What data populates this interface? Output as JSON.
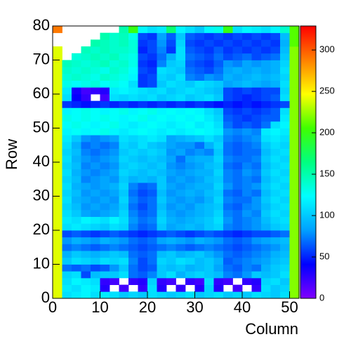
{
  "chart_data": {
    "type": "heatmap",
    "x_label": "Column",
    "y_label": "Row",
    "xlim": [
      0,
      52
    ],
    "ylim": [
      0,
      80
    ],
    "zlim": [
      0,
      329
    ],
    "xticks": [
      0,
      10,
      20,
      30,
      40,
      50
    ],
    "yticks": [
      0,
      10,
      20,
      30,
      40,
      50,
      60,
      70,
      80
    ],
    "zticks": [
      0,
      50,
      100,
      150,
      200,
      250,
      300
    ],
    "palette": [
      "#8000ff",
      "#0000ff",
      "#00a0ff",
      "#00ffff",
      "#00ff80",
      "#40ff00",
      "#ffff00",
      "#ff8000",
      "#ff0000"
    ],
    "xbins": [
      0,
      2,
      4,
      6,
      8,
      10,
      12,
      14,
      16,
      18,
      20,
      22,
      24,
      26,
      28,
      30,
      32,
      34,
      36,
      38,
      40,
      42,
      44,
      46,
      48,
      50,
      52
    ],
    "ybins": [
      0,
      2,
      4,
      6,
      8,
      10,
      12,
      14,
      16,
      18,
      20,
      22,
      24,
      26,
      28,
      30,
      32,
      34,
      36,
      38,
      40,
      42,
      44,
      46,
      48,
      50,
      52,
      54,
      56,
      58,
      60,
      62,
      64,
      66,
      68,
      70,
      72,
      74,
      76,
      78,
      80
    ],
    "z": [
      [
        240,
        110,
        115,
        120,
        110,
        115,
        110,
        100,
        105,
        100,
        110,
        105,
        100,
        105,
        110,
        100,
        105,
        110,
        100,
        105,
        100,
        110,
        105,
        100,
        110,
        220
      ],
      [
        240,
        115,
        110,
        120,
        115,
        30,
        null,
        20,
        null,
        25,
        110,
        30,
        null,
        25,
        null,
        30,
        105,
        30,
        null,
        20,
        null,
        25,
        110,
        100,
        105,
        220
      ],
      [
        240,
        110,
        120,
        115,
        110,
        25,
        20,
        null,
        25,
        30,
        105,
        25,
        20,
        null,
        25,
        20,
        110,
        25,
        20,
        null,
        25,
        30,
        105,
        110,
        100,
        220
      ],
      [
        240,
        105,
        110,
        60,
        95,
        100,
        100,
        110,
        70,
        65,
        75,
        100,
        110,
        90,
        100,
        105,
        100,
        95,
        75,
        70,
        80,
        100,
        95,
        100,
        110,
        220
      ],
      [
        240,
        70,
        65,
        70,
        60,
        65,
        80,
        100,
        70,
        60,
        65,
        100,
        95,
        100,
        90,
        95,
        100,
        85,
        70,
        65,
        75,
        70,
        90,
        100,
        105,
        220
      ],
      [
        240,
        100,
        110,
        105,
        100,
        110,
        105,
        110,
        75,
        60,
        70,
        105,
        100,
        110,
        105,
        95,
        100,
        90,
        65,
        70,
        75,
        80,
        85,
        95,
        100,
        220
      ],
      [
        240,
        90,
        100,
        95,
        90,
        95,
        100,
        95,
        70,
        65,
        70,
        95,
        100,
        90,
        95,
        100,
        90,
        80,
        70,
        65,
        70,
        75,
        80,
        90,
        95,
        220
      ],
      [
        240,
        70,
        75,
        70,
        65,
        70,
        75,
        70,
        65,
        60,
        65,
        70,
        75,
        70,
        65,
        70,
        75,
        70,
        65,
        60,
        65,
        70,
        75,
        80,
        90,
        220
      ],
      [
        240,
        80,
        90,
        85,
        80,
        90,
        85,
        80,
        70,
        65,
        70,
        85,
        90,
        85,
        80,
        90,
        85,
        80,
        70,
        65,
        70,
        80,
        85,
        90,
        95,
        220
      ],
      [
        240,
        60,
        65,
        60,
        55,
        60,
        65,
        60,
        55,
        50,
        55,
        60,
        65,
        60,
        55,
        60,
        65,
        60,
        55,
        50,
        55,
        60,
        60,
        65,
        70,
        220
      ],
      [
        240,
        110,
        115,
        110,
        105,
        100,
        110,
        105,
        75,
        65,
        70,
        100,
        85,
        90,
        95,
        90,
        100,
        105,
        75,
        70,
        75,
        80,
        90,
        100,
        105,
        220
      ],
      [
        240,
        115,
        110,
        120,
        115,
        110,
        120,
        110,
        80,
        70,
        75,
        105,
        90,
        85,
        90,
        95,
        100,
        110,
        80,
        70,
        75,
        80,
        95,
        105,
        110,
        220
      ],
      [
        240,
        110,
        100,
        85,
        80,
        85,
        90,
        105,
        75,
        65,
        70,
        100,
        85,
        80,
        85,
        90,
        95,
        105,
        75,
        70,
        80,
        75,
        100,
        110,
        105,
        220
      ],
      [
        240,
        105,
        95,
        80,
        85,
        80,
        85,
        100,
        70,
        60,
        70,
        95,
        80,
        85,
        80,
        90,
        95,
        100,
        70,
        65,
        75,
        80,
        95,
        105,
        110,
        220
      ],
      [
        240,
        110,
        90,
        85,
        80,
        85,
        80,
        105,
        75,
        65,
        70,
        100,
        85,
        80,
        85,
        80,
        90,
        105,
        75,
        70,
        70,
        80,
        100,
        110,
        105,
        220
      ],
      [
        240,
        105,
        95,
        80,
        85,
        80,
        85,
        100,
        70,
        60,
        65,
        95,
        80,
        85,
        90,
        85,
        95,
        100,
        70,
        65,
        75,
        70,
        95,
        105,
        110,
        220
      ],
      [
        240,
        110,
        90,
        85,
        80,
        85,
        90,
        105,
        75,
        65,
        70,
        100,
        85,
        80,
        85,
        90,
        90,
        105,
        80,
        70,
        75,
        80,
        100,
        110,
        105,
        220
      ],
      [
        240,
        105,
        95,
        75,
        80,
        85,
        80,
        100,
        90,
        95,
        90,
        100,
        80,
        85,
        80,
        85,
        95,
        100,
        75,
        70,
        75,
        70,
        95,
        105,
        110,
        220
      ],
      [
        240,
        110,
        90,
        80,
        75,
        80,
        85,
        105,
        100,
        95,
        100,
        95,
        85,
        80,
        85,
        90,
        90,
        105,
        75,
        70,
        80,
        75,
        100,
        110,
        105,
        220
      ],
      [
        240,
        105,
        95,
        75,
        80,
        75,
        80,
        100,
        105,
        100,
        95,
        100,
        80,
        75,
        80,
        85,
        95,
        100,
        70,
        65,
        75,
        70,
        95,
        105,
        110,
        220
      ],
      [
        240,
        110,
        90,
        80,
        75,
        80,
        85,
        105,
        100,
        95,
        100,
        95,
        85,
        70,
        85,
        90,
        90,
        105,
        75,
        70,
        70,
        75,
        100,
        110,
        105,
        220
      ],
      [
        240,
        105,
        95,
        75,
        70,
        75,
        80,
        100,
        105,
        100,
        105,
        100,
        80,
        85,
        75,
        80,
        75,
        100,
        70,
        65,
        70,
        70,
        95,
        105,
        110,
        220
      ],
      [
        240,
        110,
        90,
        70,
        75,
        70,
        75,
        105,
        100,
        110,
        100,
        95,
        85,
        80,
        80,
        70,
        90,
        105,
        70,
        65,
        70,
        75,
        100,
        110,
        105,
        220
      ],
      [
        240,
        115,
        100,
        80,
        75,
        80,
        85,
        110,
        105,
        110,
        115,
        110,
        85,
        90,
        95,
        100,
        110,
        100,
        75,
        70,
        75,
        80,
        110,
        115,
        110,
        220
      ],
      [
        240,
        120,
        125,
        120,
        125,
        130,
        120,
        115,
        120,
        125,
        120,
        115,
        120,
        115,
        120,
        125,
        120,
        115,
        80,
        75,
        80,
        75,
        115,
        120,
        115,
        220
      ],
      [
        240,
        125,
        130,
        125,
        120,
        125,
        130,
        120,
        115,
        120,
        125,
        120,
        115,
        120,
        125,
        115,
        120,
        110,
        70,
        60,
        65,
        60,
        70,
        110,
        120,
        220
      ],
      [
        240,
        130,
        125,
        130,
        125,
        130,
        125,
        120,
        125,
        130,
        120,
        125,
        120,
        125,
        120,
        125,
        115,
        105,
        65,
        60,
        55,
        60,
        65,
        65,
        115,
        220
      ],
      [
        240,
        120,
        125,
        130,
        125,
        120,
        125,
        130,
        120,
        125,
        130,
        120,
        125,
        120,
        125,
        120,
        110,
        100,
        60,
        55,
        60,
        55,
        60,
        65,
        110,
        220
      ],
      [
        240,
        55,
        50,
        45,
        50,
        55,
        50,
        55,
        50,
        55,
        50,
        55,
        50,
        55,
        50,
        55,
        50,
        45,
        50,
        45,
        50,
        45,
        50,
        55,
        60,
        220
      ],
      [
        240,
        110,
        40,
        25,
        null,
        20,
        110,
        105,
        110,
        105,
        110,
        100,
        105,
        110,
        100,
        105,
        110,
        100,
        60,
        55,
        50,
        55,
        60,
        65,
        110,
        220
      ],
      [
        240,
        115,
        35,
        20,
        25,
        30,
        115,
        120,
        115,
        110,
        105,
        110,
        100,
        105,
        110,
        105,
        100,
        95,
        60,
        55,
        60,
        55,
        60,
        60,
        105,
        220
      ],
      [
        240,
        130,
        125,
        130,
        135,
        125,
        130,
        125,
        110,
        55,
        60,
        100,
        110,
        105,
        100,
        110,
        105,
        100,
        85,
        90,
        95,
        90,
        85,
        90,
        110,
        220
      ],
      [
        240,
        135,
        140,
        135,
        130,
        140,
        135,
        130,
        120,
        55,
        60,
        105,
        100,
        110,
        75,
        70,
        80,
        75,
        90,
        85,
        90,
        95,
        90,
        95,
        105,
        220
      ],
      [
        240,
        140,
        135,
        140,
        135,
        130,
        140,
        135,
        125,
        60,
        55,
        110,
        105,
        100,
        70,
        65,
        60,
        70,
        85,
        90,
        85,
        90,
        85,
        90,
        110,
        220
      ],
      [
        240,
        145,
        140,
        135,
        140,
        145,
        135,
        140,
        130,
        55,
        50,
        75,
        100,
        105,
        65,
        60,
        55,
        65,
        80,
        75,
        85,
        80,
        85,
        90,
        105,
        220
      ],
      [
        240,
        null,
        135,
        140,
        145,
        140,
        145,
        135,
        130,
        60,
        55,
        70,
        90,
        110,
        70,
        65,
        60,
        70,
        60,
        65,
        70,
        60,
        65,
        70,
        100,
        220
      ],
      [
        240,
        null,
        null,
        145,
        140,
        145,
        140,
        140,
        135,
        50,
        60,
        75,
        55,
        110,
        65,
        60,
        55,
        65,
        55,
        60,
        55,
        60,
        55,
        60,
        95,
        220
      ],
      [
        null,
        null,
        null,
        null,
        150,
        145,
        140,
        145,
        135,
        55,
        60,
        80,
        60,
        105,
        60,
        55,
        60,
        55,
        60,
        55,
        60,
        55,
        60,
        55,
        90,
        210
      ],
      [
        null,
        null,
        null,
        null,
        null,
        150,
        140,
        145,
        130,
        60,
        55,
        85,
        65,
        100,
        65,
        60,
        55,
        60,
        55,
        60,
        55,
        60,
        55,
        60,
        95,
        210
      ],
      [
        290,
        null,
        null,
        null,
        null,
        null,
        null,
        150,
        200,
        120,
        110,
        115,
        170,
        120,
        110,
        100,
        120,
        130,
        200,
        110,
        120,
        115,
        110,
        120,
        140,
        210
      ]
    ]
  }
}
